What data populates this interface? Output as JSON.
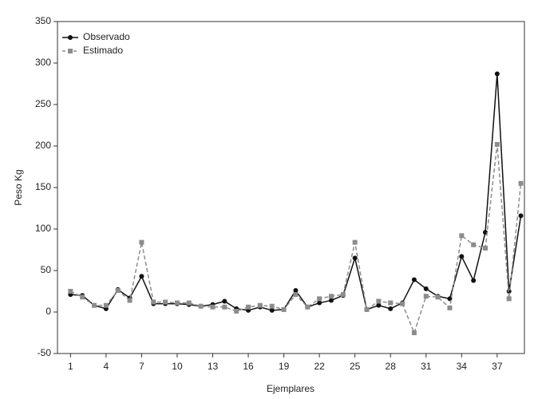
{
  "chart_data": {
    "type": "line",
    "xlabel": "Ejemplares",
    "ylabel": "Peso Kg",
    "x": [
      1,
      2,
      3,
      4,
      5,
      6,
      7,
      8,
      9,
      10,
      11,
      12,
      13,
      14,
      15,
      16,
      17,
      18,
      19,
      20,
      21,
      22,
      23,
      24,
      25,
      26,
      27,
      28,
      29,
      30,
      31,
      32,
      33,
      34,
      35,
      36,
      37,
      38,
      39
    ],
    "series": [
      {
        "name": "Observado",
        "color": "#111111",
        "dash": false,
        "marker": "circle",
        "values": [
          21,
          20,
          8,
          4,
          27,
          17,
          43,
          10,
          10,
          10,
          9,
          7,
          9,
          13,
          4,
          2,
          6,
          2,
          3,
          26,
          6,
          11,
          14,
          20,
          65,
          3,
          8,
          4,
          11,
          39,
          28,
          19,
          16,
          67,
          38,
          96,
          287,
          25,
          116
        ]
      },
      {
        "name": "Estimado",
        "color": "#8c8c8c",
        "dash": true,
        "marker": "square",
        "values": [
          25,
          18,
          8,
          8,
          26,
          14,
          84,
          12,
          12,
          11,
          11,
          7,
          6,
          6,
          1,
          6,
          8,
          7,
          3,
          21,
          6,
          16,
          19,
          21,
          84,
          3,
          13,
          11,
          10,
          -25,
          19,
          18,
          5,
          92,
          81,
          77,
          202,
          16,
          155
        ]
      }
    ],
    "xlim": [
      -0.1,
      39.3
    ],
    "xticks": [
      1,
      4,
      7,
      10,
      13,
      16,
      19,
      22,
      25,
      28,
      31,
      34,
      37
    ],
    "ylim": [
      -50,
      350
    ],
    "yticks": [
      -50,
      0,
      50,
      100,
      150,
      200,
      250,
      300,
      350
    ],
    "grid": false,
    "legend": "upper left"
  }
}
